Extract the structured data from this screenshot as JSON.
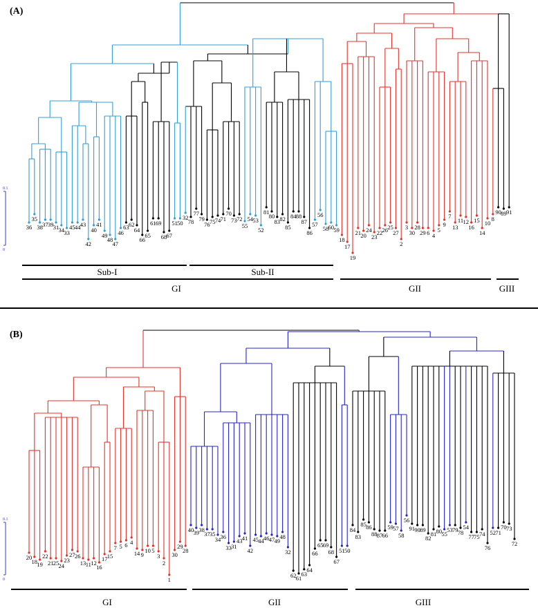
{
  "colors": {
    "black": "#000000",
    "red": "#e8302a",
    "blue": "#2f9fd8",
    "blue_b": "#2323cc",
    "scale": "#3b3bd0"
  },
  "panelA": {
    "label": "(A)",
    "scale_label": "0.1",
    "scale_zero": "0",
    "leaves": [
      {
        "id": "36",
        "c": "blue"
      },
      {
        "id": "35",
        "c": "blue"
      },
      {
        "id": "38",
        "c": "blue"
      },
      {
        "id": "37",
        "c": "blue"
      },
      {
        "id": "39",
        "c": "blue"
      },
      {
        "id": "31",
        "c": "blue"
      },
      {
        "id": "34",
        "c": "blue"
      },
      {
        "id": "33",
        "c": "blue"
      },
      {
        "id": "45",
        "c": "blue"
      },
      {
        "id": "44",
        "c": "blue"
      },
      {
        "id": "43",
        "c": "blue"
      },
      {
        "id": "42",
        "c": "blue"
      },
      {
        "id": "40",
        "c": "blue"
      },
      {
        "id": "41",
        "c": "blue"
      },
      {
        "id": "49",
        "c": "blue"
      },
      {
        "id": "48",
        "c": "blue"
      },
      {
        "id": "47",
        "c": "blue"
      },
      {
        "id": "46",
        "c": "blue"
      },
      {
        "id": "63",
        "c": "black"
      },
      {
        "id": "62",
        "c": "black"
      },
      {
        "id": "64",
        "c": "black"
      },
      {
        "id": "66",
        "c": "black"
      },
      {
        "id": "65",
        "c": "black"
      },
      {
        "id": "61",
        "c": "black"
      },
      {
        "id": "69",
        "c": "black"
      },
      {
        "id": "68",
        "c": "black"
      },
      {
        "id": "67",
        "c": "black"
      },
      {
        "id": "51",
        "c": "blue"
      },
      {
        "id": "50",
        "c": "blue"
      },
      {
        "id": "32",
        "c": "blue"
      },
      {
        "id": "78",
        "c": "black"
      },
      {
        "id": "77",
        "c": "black"
      },
      {
        "id": "79",
        "c": "black"
      },
      {
        "id": "76",
        "c": "black"
      },
      {
        "id": "75",
        "c": "black"
      },
      {
        "id": "74",
        "c": "black"
      },
      {
        "id": "71",
        "c": "black"
      },
      {
        "id": "70",
        "c": "black"
      },
      {
        "id": "73",
        "c": "black"
      },
      {
        "id": "72",
        "c": "black"
      },
      {
        "id": "55",
        "c": "blue"
      },
      {
        "id": "54",
        "c": "blue"
      },
      {
        "id": "53",
        "c": "blue"
      },
      {
        "id": "52",
        "c": "blue"
      },
      {
        "id": "81",
        "c": "black"
      },
      {
        "id": "80",
        "c": "black"
      },
      {
        "id": "83",
        "c": "black"
      },
      {
        "id": "82",
        "c": "black"
      },
      {
        "id": "85",
        "c": "black"
      },
      {
        "id": "84",
        "c": "black"
      },
      {
        "id": "88",
        "c": "black"
      },
      {
        "id": "87",
        "c": "black"
      },
      {
        "id": "86",
        "c": "black"
      },
      {
        "id": "57",
        "c": "blue"
      },
      {
        "id": "56",
        "c": "blue"
      },
      {
        "id": "58",
        "c": "blue"
      },
      {
        "id": "60",
        "c": "blue"
      },
      {
        "id": "59",
        "c": "blue"
      },
      {
        "id": "18",
        "c": "red"
      },
      {
        "id": "17",
        "c": "red"
      },
      {
        "id": "19",
        "c": "red"
      },
      {
        "id": "21",
        "c": "red"
      },
      {
        "id": "20",
        "c": "red"
      },
      {
        "id": "24",
        "c": "red"
      },
      {
        "id": "23",
        "c": "red"
      },
      {
        "id": "22",
        "c": "red"
      },
      {
        "id": "26",
        "c": "red"
      },
      {
        "id": "25",
        "c": "red"
      },
      {
        "id": "27",
        "c": "red"
      },
      {
        "id": "2",
        "c": "red"
      },
      {
        "id": "3",
        "c": "red"
      },
      {
        "id": "30",
        "c": "red"
      },
      {
        "id": "28",
        "c": "red"
      },
      {
        "id": "29",
        "c": "red"
      },
      {
        "id": "6",
        "c": "red"
      },
      {
        "id": "4",
        "c": "red"
      },
      {
        "id": "5",
        "c": "red"
      },
      {
        "id": "9",
        "c": "red"
      },
      {
        "id": "7",
        "c": "red"
      },
      {
        "id": "13",
        "c": "red"
      },
      {
        "id": "11",
        "c": "red"
      },
      {
        "id": "12",
        "c": "red"
      },
      {
        "id": "16",
        "c": "red"
      },
      {
        "id": "15",
        "c": "red"
      },
      {
        "id": "14",
        "c": "red"
      },
      {
        "id": "10",
        "c": "red"
      },
      {
        "id": "8",
        "c": "red"
      },
      {
        "id": "90",
        "c": "black"
      },
      {
        "id": "89",
        "c": "black"
      },
      {
        "id": "91",
        "c": "black"
      },
      {
        "id": "1",
        "c": "red"
      }
    ],
    "groups": [
      {
        "label": "Sub-I"
      },
      {
        "label": "Sub-II"
      },
      {
        "label": "GI"
      },
      {
        "label": "GII"
      },
      {
        "label": "GIII"
      }
    ]
  },
  "panelB": {
    "label": "(B)",
    "scale_label": "0.1",
    "scale_zero": "0",
    "leaves": [
      {
        "id": "20",
        "c": "red"
      },
      {
        "id": "18",
        "c": "red"
      },
      {
        "id": "19",
        "c": "red"
      },
      {
        "id": "22",
        "c": "red"
      },
      {
        "id": "21",
        "c": "red"
      },
      {
        "id": "25",
        "c": "red"
      },
      {
        "id": "24",
        "c": "red"
      },
      {
        "id": "23",
        "c": "red"
      },
      {
        "id": "27",
        "c": "red"
      },
      {
        "id": "26",
        "c": "red"
      },
      {
        "id": "13",
        "c": "red"
      },
      {
        "id": "11",
        "c": "red"
      },
      {
        "id": "12",
        "c": "red"
      },
      {
        "id": "16",
        "c": "red"
      },
      {
        "id": "17",
        "c": "red"
      },
      {
        "id": "15",
        "c": "red"
      },
      {
        "id": "7",
        "c": "red"
      },
      {
        "id": "5",
        "c": "red"
      },
      {
        "id": "6",
        "c": "red"
      },
      {
        "id": "4",
        "c": "red"
      },
      {
        "id": "14",
        "c": "red"
      },
      {
        "id": "9",
        "c": "red"
      },
      {
        "id": "10",
        "c": "red"
      },
      {
        "id": "5",
        "c": "red"
      },
      {
        "id": "3",
        "c": "red"
      },
      {
        "id": "2",
        "c": "red"
      },
      {
        "id": "1",
        "c": "red"
      },
      {
        "id": "30",
        "c": "red"
      },
      {
        "id": "29",
        "c": "red"
      },
      {
        "id": "28",
        "c": "red"
      },
      {
        "id": "40",
        "c": "blue_b"
      },
      {
        "id": "39",
        "c": "blue_b"
      },
      {
        "id": "38",
        "c": "blue_b"
      },
      {
        "id": "37",
        "c": "blue_b"
      },
      {
        "id": "35",
        "c": "blue_b"
      },
      {
        "id": "34",
        "c": "blue_b"
      },
      {
        "id": "36",
        "c": "blue_b"
      },
      {
        "id": "33",
        "c": "blue_b"
      },
      {
        "id": "31",
        "c": "blue_b"
      },
      {
        "id": "43",
        "c": "blue_b"
      },
      {
        "id": "41",
        "c": "blue_b"
      },
      {
        "id": "42",
        "c": "blue_b"
      },
      {
        "id": "45",
        "c": "blue_b"
      },
      {
        "id": "44",
        "c": "blue_b"
      },
      {
        "id": "46",
        "c": "blue_b"
      },
      {
        "id": "47",
        "c": "blue_b"
      },
      {
        "id": "49",
        "c": "blue_b"
      },
      {
        "id": "48",
        "c": "blue_b"
      },
      {
        "id": "32",
        "c": "blue_b"
      },
      {
        "id": "62",
        "c": "black"
      },
      {
        "id": "61",
        "c": "black"
      },
      {
        "id": "63",
        "c": "black"
      },
      {
        "id": "64",
        "c": "black"
      },
      {
        "id": "66",
        "c": "black"
      },
      {
        "id": "65",
        "c": "black"
      },
      {
        "id": "69",
        "c": "black"
      },
      {
        "id": "68",
        "c": "black"
      },
      {
        "id": "67",
        "c": "black"
      },
      {
        "id": "51",
        "c": "blue_b"
      },
      {
        "id": "50",
        "c": "blue_b"
      },
      {
        "id": "84",
        "c": "black"
      },
      {
        "id": "83",
        "c": "black"
      },
      {
        "id": "85",
        "c": "black"
      },
      {
        "id": "86",
        "c": "black"
      },
      {
        "id": "88",
        "c": "black"
      },
      {
        "id": "87",
        "c": "black"
      },
      {
        "id": "66",
        "c": "black"
      },
      {
        "id": "59",
        "c": "blue_b"
      },
      {
        "id": "57",
        "c": "blue_b"
      },
      {
        "id": "58",
        "c": "blue_b"
      },
      {
        "id": "56",
        "c": "blue_b"
      },
      {
        "id": "91",
        "c": "black"
      },
      {
        "id": "90",
        "c": "black"
      },
      {
        "id": "89",
        "c": "black"
      },
      {
        "id": "82",
        "c": "black"
      },
      {
        "id": "81",
        "c": "black"
      },
      {
        "id": "80",
        "c": "black"
      },
      {
        "id": "55",
        "c": "blue_b"
      },
      {
        "id": "53",
        "c": "blue_b"
      },
      {
        "id": "79",
        "c": "black"
      },
      {
        "id": "78",
        "c": "black"
      },
      {
        "id": "54",
        "c": "blue_b"
      },
      {
        "id": "77",
        "c": "black"
      },
      {
        "id": "75",
        "c": "black"
      },
      {
        "id": "74",
        "c": "black"
      },
      {
        "id": "76",
        "c": "black"
      },
      {
        "id": "52",
        "c": "blue_b"
      },
      {
        "id": "71",
        "c": "black"
      },
      {
        "id": "70",
        "c": "black"
      },
      {
        "id": "73",
        "c": "black"
      },
      {
        "id": "72",
        "c": "black"
      }
    ],
    "groups": [
      {
        "label": "GI"
      },
      {
        "label": "GII"
      },
      {
        "label": "GIII"
      }
    ]
  }
}
